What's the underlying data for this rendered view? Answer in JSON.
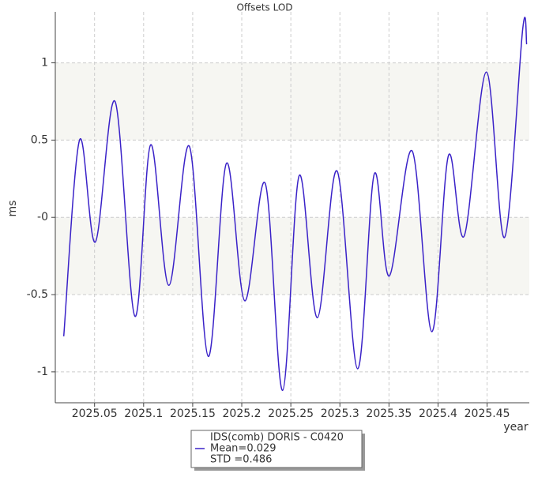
{
  "chart_data": {
    "type": "line",
    "title": "Offsets LOD",
    "x_label": "year",
    "y_label": "ms",
    "xlim": [
      2025.01,
      2025.493
    ],
    "ylim": [
      -1.2,
      1.33
    ],
    "xticks": [
      2025.05,
      2025.1,
      2025.15,
      2025.2,
      2025.25,
      2025.3,
      2025.35,
      2025.4,
      2025.45
    ],
    "yticks": [
      -1,
      -0.5,
      {
        "value": 0,
        "label": "-0"
      },
      0.5,
      1
    ],
    "grid": true,
    "series": [
      {
        "name": "IDS(comb) DORIS - C0420",
        "color": "#3a22c8",
        "x": [
          2025.0186,
          2025.0347,
          2025.0508,
          2025.0709,
          2025.0911,
          2025.1072,
          2025.1257,
          2025.1466,
          2025.1659,
          2025.1844,
          2025.203,
          2025.2239,
          2025.2416,
          2025.2585,
          2025.277,
          2025.2971,
          2025.3181,
          2025.335,
          2025.3503,
          2025.3736,
          2025.3937,
          2025.4106,
          2025.4267,
          2025.4493,
          2025.4678,
          2025.4863,
          2025.4903
        ],
        "values": [
          -0.77,
          0.5,
          -0.16,
          0.75,
          -0.64,
          0.47,
          -0.44,
          0.46,
          -0.9,
          0.35,
          -0.54,
          0.22,
          -1.12,
          0.27,
          -0.65,
          0.3,
          -0.98,
          0.28,
          -0.38,
          0.43,
          -0.74,
          0.4,
          -0.12,
          0.94,
          -0.13,
          1.22,
          1.12
        ]
      }
    ],
    "legend_notes": [
      "Mean=0.029",
      "STD =0.486"
    ]
  }
}
